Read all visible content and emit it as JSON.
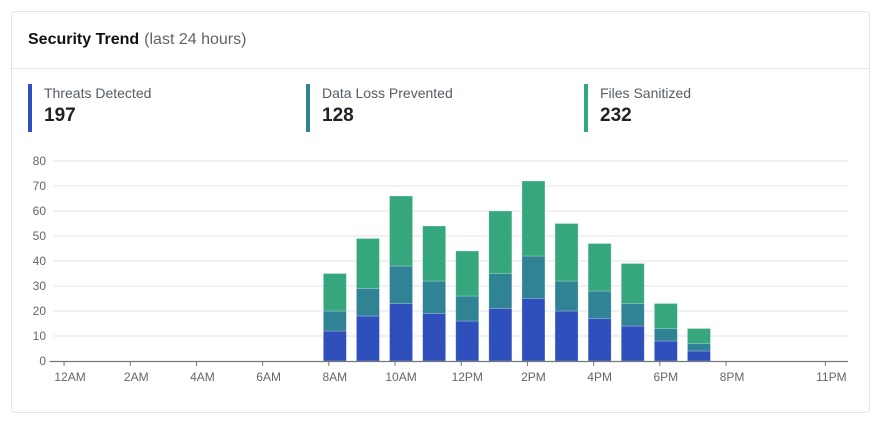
{
  "header": {
    "title": "Security Trend",
    "subtitle": "(last 24 hours)"
  },
  "kpis": [
    {
      "label": "Threats Detected",
      "value": "197",
      "color": "#2f4fbc"
    },
    {
      "label": "Data Loss Prevented",
      "value": "128",
      "color": "#2f8394"
    },
    {
      "label": "Files Sanitized",
      "value": "232",
      "color": "#36a77c"
    }
  ],
  "chart_data": {
    "type": "bar",
    "stacked": true,
    "title": "Security Trend (last 24 hours)",
    "x": [
      "12AM",
      "1AM",
      "2AM",
      "3AM",
      "4AM",
      "5AM",
      "6AM",
      "7AM",
      "8AM",
      "9AM",
      "10AM",
      "11AM",
      "12PM",
      "1PM",
      "2PM",
      "3PM",
      "4PM",
      "5PM",
      "6PM",
      "7PM",
      "8PM",
      "9PM",
      "10PM",
      "11PM"
    ],
    "xtick_labels": [
      "12AM",
      "2AM",
      "4AM",
      "6AM",
      "8AM",
      "10AM",
      "12PM",
      "2PM",
      "4PM",
      "6PM",
      "8PM",
      "11PM"
    ],
    "ylim": [
      0,
      80
    ],
    "yticks": [
      0,
      10,
      20,
      30,
      40,
      50,
      60,
      70,
      80
    ],
    "grid": true,
    "series": [
      {
        "name": "Threats Detected",
        "color": "#2f4fbc",
        "values": [
          0,
          0,
          0,
          0,
          0,
          0,
          0,
          0,
          12,
          18,
          23,
          19,
          16,
          21,
          25,
          20,
          17,
          14,
          8,
          4,
          0,
          0,
          0,
          0
        ]
      },
      {
        "name": "Data Loss Prevented",
        "color": "#2f8394",
        "values": [
          0,
          0,
          0,
          0,
          0,
          0,
          0,
          0,
          8,
          11,
          15,
          13,
          10,
          14,
          17,
          12,
          11,
          9,
          5,
          3,
          0,
          0,
          0,
          0
        ]
      },
      {
        "name": "Files Sanitized",
        "color": "#36a77c",
        "values": [
          0,
          0,
          0,
          0,
          0,
          0,
          0,
          0,
          15,
          20,
          28,
          22,
          18,
          25,
          30,
          23,
          19,
          16,
          10,
          6,
          0,
          0,
          0,
          0
        ]
      }
    ]
  }
}
